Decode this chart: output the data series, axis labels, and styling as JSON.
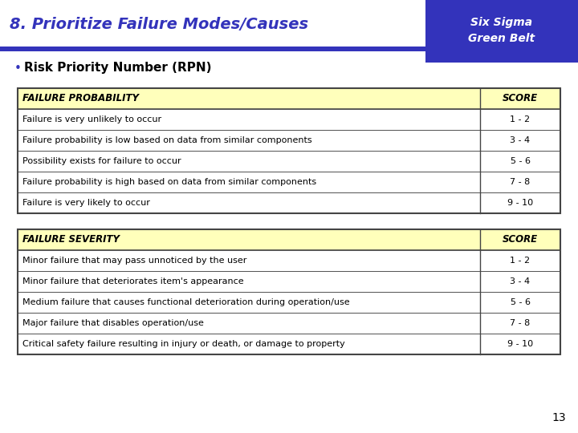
{
  "title": "8. Prioritize Failure Modes/Causes",
  "title_color": "#3333BB",
  "six_sigma_bg": "#3333BB",
  "six_sigma_text": "Six Sigma\nGreen Belt",
  "bullet_text": "Risk Priority Number (RPN)",
  "table_header_bg": "#FFFFBB",
  "table_body_bg": "#FFFFFF",
  "table_border_color": "#444444",
  "bg_color": "#FFFFFF",
  "page_number": "13",
  "header_underline_color": "#3333BB",
  "prob_table": {
    "header": [
      "FAILURE PROBABILITY",
      "SCORE"
    ],
    "rows": [
      [
        "Failure is very unlikely to occur",
        "1 - 2"
      ],
      [
        "Failure probability is low based on data from similar components",
        "3 - 4"
      ],
      [
        "Possibility exists for failure to occur",
        "5 - 6"
      ],
      [
        "Failure probability is high based on data from similar components",
        "7 - 8"
      ],
      [
        "Failure is very likely to occur",
        "9 - 10"
      ]
    ]
  },
  "sev_table": {
    "header": [
      "FAILURE SEVERITY",
      "SCORE"
    ],
    "rows": [
      [
        "Minor failure that may pass unnoticed by the user",
        "1 - 2"
      ],
      [
        "Minor failure that deteriorates item's appearance",
        "3 - 4"
      ],
      [
        "Medium failure that causes functional deterioration during operation/use",
        "5 - 6"
      ],
      [
        "Major failure that disables operation/use",
        "7 - 8"
      ],
      [
        "Critical safety failure resulting in injury or death, or damage to property",
        "9 - 10"
      ]
    ]
  }
}
